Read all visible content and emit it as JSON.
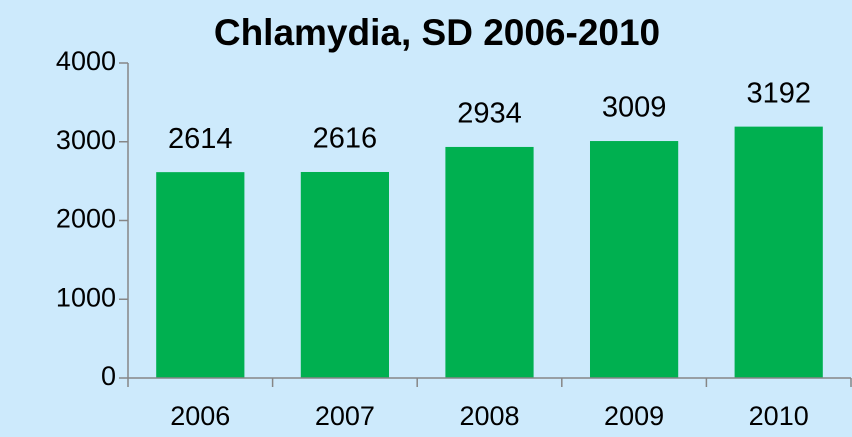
{
  "chart_data": {
    "type": "bar",
    "title": "Chlamydia, SD 2006-2010",
    "categories": [
      "2006",
      "2007",
      "2008",
      "2009",
      "2010"
    ],
    "values": [
      2614,
      2616,
      2934,
      3009,
      3192
    ],
    "color": "#00b050",
    "ylim": [
      0,
      4000
    ],
    "yticks": [
      0,
      1000,
      2000,
      3000,
      4000
    ],
    "grid": false
  }
}
